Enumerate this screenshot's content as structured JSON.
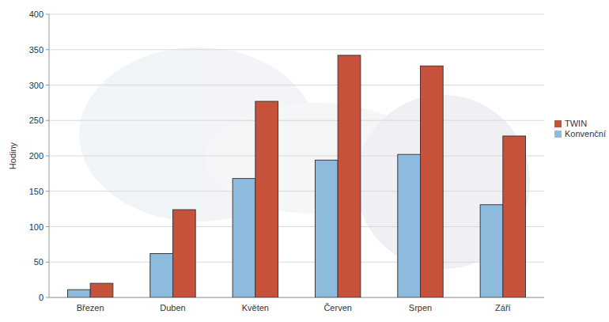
{
  "chart_data": {
    "type": "bar",
    "y_label": "Hodiny",
    "categories": [
      "Březen",
      "Duben",
      "Květen",
      "Červen",
      "Srpen",
      "Září"
    ],
    "series": [
      {
        "name": "Konvenční",
        "color": "#8dbbde",
        "values": [
          11,
          62,
          168,
          194,
          202,
          131
        ]
      },
      {
        "name": "TWIN",
        "color": "#c6523b",
        "values": [
          20,
          124,
          277,
          342,
          327,
          228
        ]
      }
    ],
    "ylim": [
      0,
      400
    ],
    "yticks": [
      0,
      50,
      100,
      150,
      200,
      250,
      300,
      350,
      400
    ],
    "grid": true,
    "legend": "right"
  }
}
